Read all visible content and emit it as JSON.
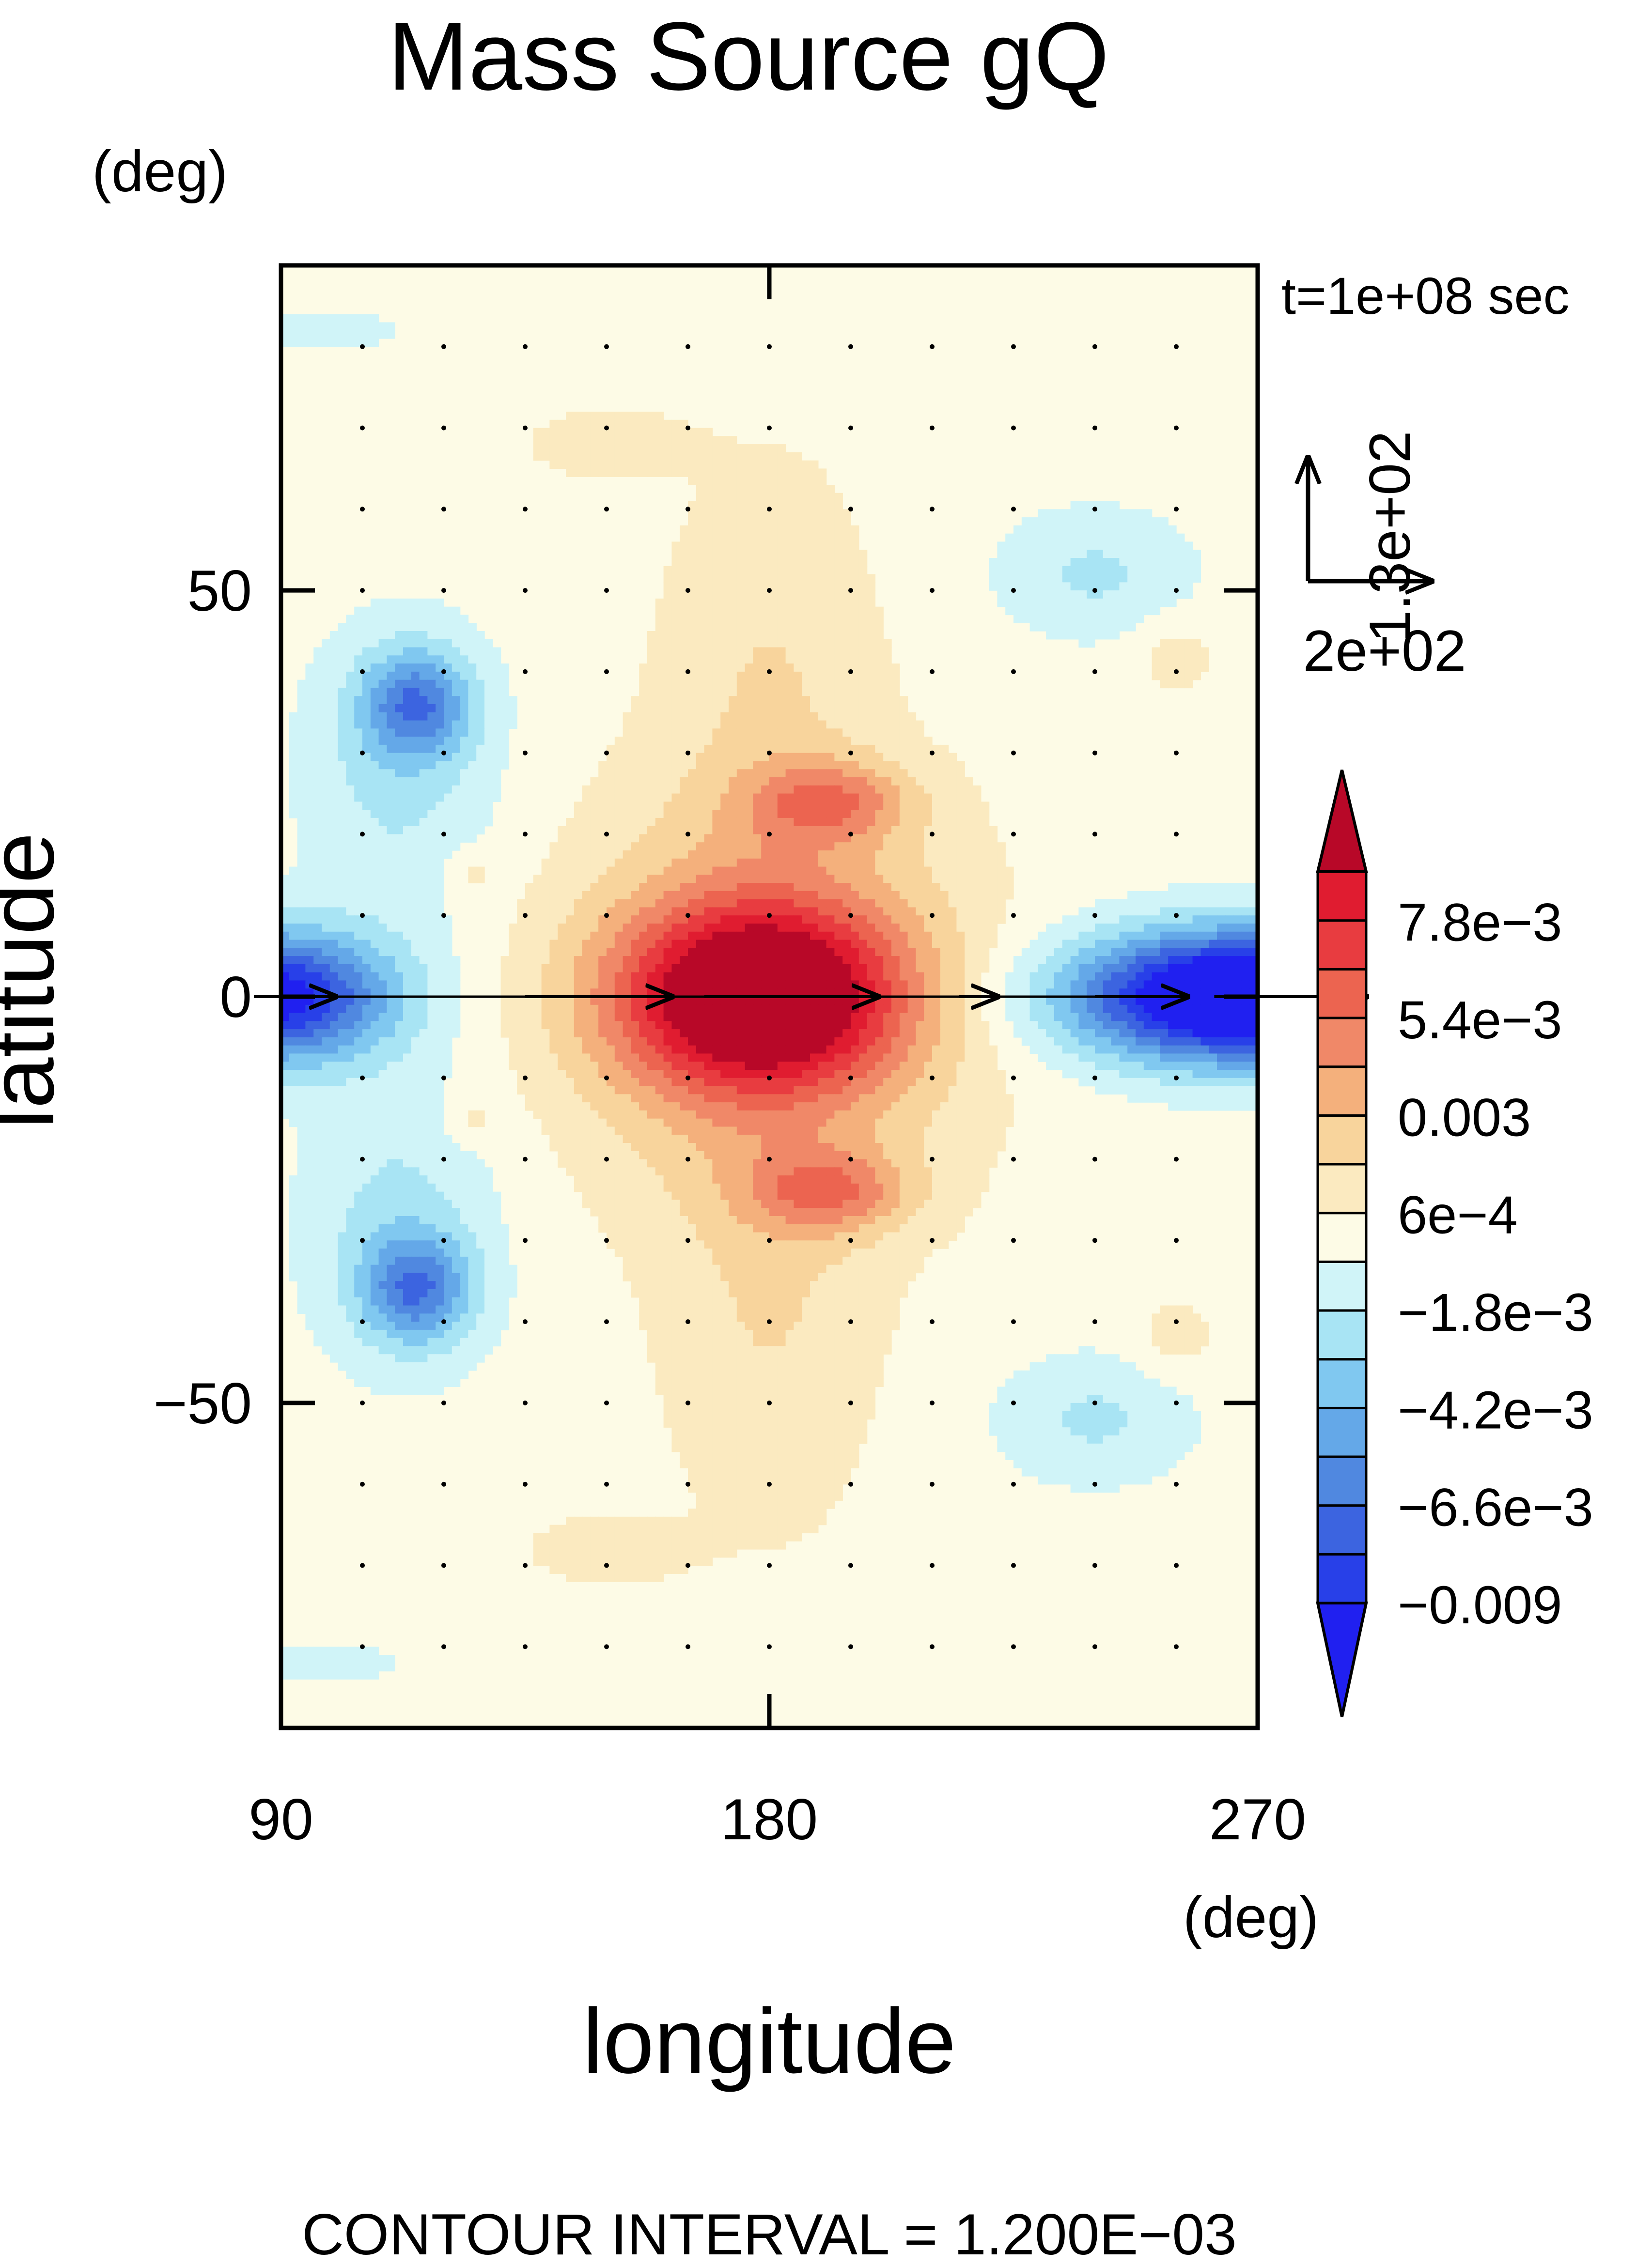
{
  "chart_data": {
    "type": "heatmap",
    "title": "Mass Source gQ",
    "xlabel": "longitude",
    "ylabel": "latitude",
    "x_unit": "(deg)",
    "y_unit": "(deg)",
    "xlim": [
      90,
      270
    ],
    "ylim": [
      -90,
      90
    ],
    "x_ticks": [
      90,
      180,
      270
    ],
    "x_tick_labels": [
      "90",
      "180",
      "270"
    ],
    "y_ticks": [
      50,
      0,
      -50
    ],
    "y_tick_labels": [
      "50",
      "0",
      "−50"
    ],
    "time_label": "t=1e+08 sec",
    "vector_ref": {
      "x_label": "2e+02",
      "y_label": "1.3e+02",
      "x_value": 200,
      "y_value": 130
    },
    "footer": "CONTOUR INTERVAL = 1.200E−03",
    "contour_interval": 0.0012,
    "colorbar": {
      "levels": [
        -0.009,
        -0.0078,
        -0.0066,
        -0.0054,
        -0.0042,
        -0.003,
        -0.0018,
        -0.0006,
        0.0006,
        0.0018,
        0.003,
        0.0042,
        0.0054,
        0.0066,
        0.0078,
        0.009
      ],
      "labels": [
        "7.8e−3",
        "5.4e−3",
        "0.003",
        "6e−4",
        "−1.8e−3",
        "−4.2e−3",
        "−6.6e−3",
        "−0.009"
      ],
      "label_values": [
        0.0078,
        0.0054,
        0.003,
        0.0006,
        -0.0018,
        -0.0042,
        -0.0066,
        -0.009
      ],
      "colors": [
        "#2020f0",
        "#2840e8",
        "#3c64e0",
        "#5088e0",
        "#64a8e8",
        "#80c8f0",
        "#a8e4f4",
        "#d0f4f8",
        "#fdfbe6",
        "#fbeac0",
        "#f8d49c",
        "#f4b07c",
        "#f08868",
        "#ec6450",
        "#e83c40",
        "#e01c30",
        "#b80828"
      ]
    },
    "features": [
      {
        "kind": "max",
        "lon": 175,
        "lat": 0,
        "value": 0.0085
      },
      {
        "kind": "min",
        "lon": 270,
        "lat": 0,
        "value": -0.009
      },
      {
        "kind": "min",
        "lon": 90,
        "lat": 0,
        "value": -0.0066
      },
      {
        "kind": "min",
        "lon": 115,
        "lat": 35,
        "value": -0.0042
      },
      {
        "kind": "min",
        "lon": 115,
        "lat": -35,
        "value": -0.0042
      },
      {
        "kind": "max",
        "lon": 190,
        "lat": 23,
        "value": 0.0042
      },
      {
        "kind": "max",
        "lon": 190,
        "lat": -23,
        "value": 0.0042
      }
    ],
    "grid": false
  }
}
